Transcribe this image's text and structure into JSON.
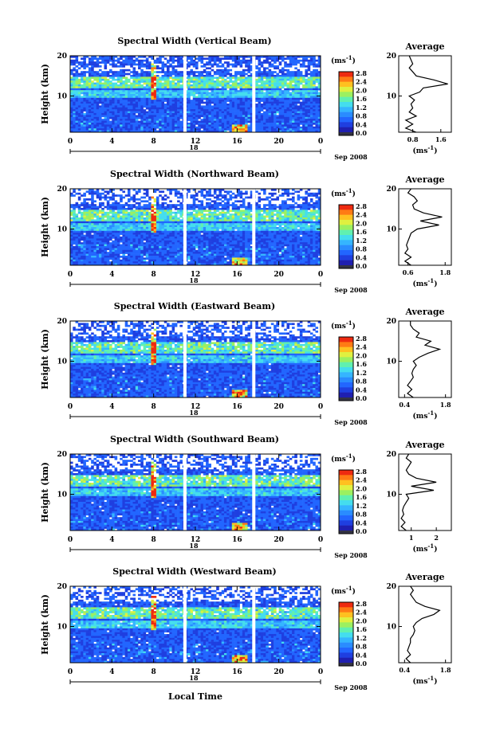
{
  "figure": {
    "xlabel": "Local Time",
    "date_label": "Sep 2008",
    "day_label": "18",
    "ylabel": "Height (km)",
    "unit_label": "(ms",
    "unit_exp": "-1",
    "avg_title": "Average",
    "colormap": [
      "#1f1fb0",
      "#1f3fe0",
      "#2266ff",
      "#2a8cff",
      "#35b5ff",
      "#44ddee",
      "#60f0b0",
      "#9cf060",
      "#e0f040",
      "#ffc020",
      "#ff7a14",
      "#ee2a10"
    ]
  },
  "chart_data": [
    {
      "type": "heatmap",
      "title": "Spectral Width (Vertical Beam)",
      "xlabel": "Local Time",
      "ylabel": "Height (km)",
      "xlim": [
        0,
        24
      ],
      "ylim": [
        1,
        20
      ],
      "xticks": [
        "0",
        "4",
        "8",
        "12",
        "16",
        "20",
        "0"
      ],
      "yticks": [
        "10",
        "20"
      ],
      "colorbar_ticks": [
        "2.8",
        "2.4",
        "2.0",
        "1.6",
        "1.2",
        "0.8",
        "0.4",
        "0.0"
      ],
      "data_gaps_hours": [
        11.0,
        17.6
      ],
      "average_profile": {
        "title": "Average",
        "xlabel": "(ms-1)",
        "xticks": [
          "0.8",
          "1.6"
        ],
        "xlim": [
          0.4,
          1.9
        ],
        "yticks": [
          "10",
          "20"
        ],
        "ylim": [
          1,
          20
        ],
        "height": [
          1,
          2,
          3,
          4,
          5,
          6,
          7,
          8,
          9,
          10,
          11,
          12,
          13,
          14,
          15,
          16,
          17,
          18,
          19,
          20
        ],
        "width": [
          0.9,
          0.6,
          0.8,
          0.6,
          0.9,
          0.7,
          0.8,
          0.75,
          0.85,
          0.7,
          1.0,
          1.1,
          1.8,
          1.4,
          0.9,
          0.8,
          0.7,
          0.8,
          0.75,
          0.7
        ]
      }
    },
    {
      "type": "heatmap",
      "title": "Spectral Width (Northward Beam)",
      "xlabel": "Local Time",
      "ylabel": "Height (km)",
      "xlim": [
        0,
        24
      ],
      "ylim": [
        1,
        20
      ],
      "xticks": [
        "0",
        "4",
        "8",
        "12",
        "16",
        "20",
        "0"
      ],
      "yticks": [
        "10",
        "20"
      ],
      "colorbar_ticks": [
        "2.8",
        "2.4",
        "2.0",
        "1.6",
        "1.2",
        "0.8",
        "0.4",
        "0.0"
      ],
      "data_gaps_hours": [
        11.0,
        17.6
      ],
      "average_profile": {
        "title": "Average",
        "xlabel": "(ms-1)",
        "xticks": [
          "0.6",
          "1.8"
        ],
        "xlim": [
          0.3,
          2.0
        ],
        "yticks": [
          "10",
          "20"
        ],
        "ylim": [
          1,
          20
        ],
        "height": [
          1,
          2,
          3,
          4,
          5,
          6,
          7,
          8,
          9,
          10,
          11,
          12,
          13,
          14,
          15,
          16,
          17,
          18,
          19,
          20
        ],
        "width": [
          0.7,
          0.5,
          0.7,
          0.5,
          0.6,
          0.55,
          0.6,
          0.65,
          0.7,
          0.9,
          1.6,
          1.0,
          1.7,
          1.1,
          0.8,
          0.75,
          0.9,
          0.8,
          0.6,
          0.7
        ]
      }
    },
    {
      "type": "heatmap",
      "title": "Spectral Width (Eastward Beam)",
      "xlabel": "Local Time",
      "ylabel": "Height (km)",
      "xlim": [
        0,
        24
      ],
      "ylim": [
        1,
        20
      ],
      "xticks": [
        "0",
        "4",
        "8",
        "12",
        "16",
        "20",
        "0"
      ],
      "yticks": [
        "10",
        "20"
      ],
      "colorbar_ticks": [
        "2.8",
        "2.4",
        "2.0",
        "1.6",
        "1.2",
        "0.8",
        "0.4",
        "0.0"
      ],
      "data_gaps_hours": [
        11.0,
        17.6
      ],
      "average_profile": {
        "title": "Average",
        "xlabel": "(ms-1)",
        "xticks": [
          "0.4",
          "1.8"
        ],
        "xlim": [
          0.2,
          2.0
        ],
        "yticks": [
          "10",
          "20"
        ],
        "ylim": [
          1,
          20
        ],
        "height": [
          1,
          2,
          3,
          4,
          5,
          6,
          7,
          8,
          9,
          10,
          11,
          12,
          13,
          14,
          15,
          16,
          17,
          18,
          19,
          20
        ],
        "width": [
          0.7,
          0.5,
          0.65,
          0.5,
          0.6,
          0.7,
          0.65,
          0.7,
          0.8,
          0.7,
          0.9,
          1.2,
          1.6,
          1.1,
          1.3,
          0.8,
          0.9,
          0.7,
          0.6,
          0.6
        ]
      }
    },
    {
      "type": "heatmap",
      "title": "Spectral Width (Southward Beam)",
      "xlabel": "Local Time",
      "ylabel": "Height (km)",
      "xlim": [
        0,
        24
      ],
      "ylim": [
        1,
        20
      ],
      "xticks": [
        "0",
        "4",
        "8",
        "12",
        "16",
        "20",
        "0"
      ],
      "yticks": [
        "10",
        "20"
      ],
      "colorbar_ticks": [
        "2.8",
        "2.4",
        "2.0",
        "1.6",
        "1.2",
        "0.8",
        "0.4",
        "0.0"
      ],
      "data_gaps_hours": [
        11.0,
        17.6
      ],
      "average_profile": {
        "title": "Average",
        "xlabel": "(ms-1)",
        "xticks": [
          "1",
          "2"
        ],
        "xlim": [
          0.5,
          2.6
        ],
        "yticks": [
          "10",
          "20"
        ],
        "ylim": [
          1,
          20
        ],
        "height": [
          1,
          2,
          3,
          4,
          5,
          6,
          7,
          8,
          9,
          10,
          11,
          12,
          13,
          14,
          15,
          16,
          17,
          18,
          19,
          20
        ],
        "width": [
          0.8,
          0.6,
          0.75,
          0.6,
          0.7,
          0.65,
          0.7,
          0.8,
          0.9,
          0.8,
          1.9,
          1.0,
          2.0,
          1.2,
          0.9,
          0.8,
          0.9,
          1.0,
          0.8,
          0.9
        ]
      }
    },
    {
      "type": "heatmap",
      "title": "Spectral Width (Westward Beam)",
      "xlabel": "Local Time",
      "ylabel": "Height (km)",
      "xlim": [
        0,
        24
      ],
      "ylim": [
        1,
        20
      ],
      "xticks": [
        "0",
        "4",
        "8",
        "12",
        "16",
        "20",
        "0"
      ],
      "yticks": [
        "10",
        "20"
      ],
      "colorbar_ticks": [
        "2.8",
        "2.4",
        "2.0",
        "1.6",
        "1.2",
        "0.8",
        "0.4",
        "0.0"
      ],
      "data_gaps_hours": [
        11.0,
        17.6
      ],
      "average_profile": {
        "title": "Average",
        "xlabel": "(ms-1)",
        "xticks": [
          "0.4",
          "1.8"
        ],
        "xlim": [
          0.2,
          2.0
        ],
        "yticks": [
          "10",
          "20"
        ],
        "ylim": [
          1,
          20
        ],
        "height": [
          1,
          2,
          3,
          4,
          5,
          6,
          7,
          8,
          9,
          10,
          11,
          12,
          13,
          14,
          15,
          16,
          17,
          18,
          19,
          20
        ],
        "width": [
          0.6,
          0.45,
          0.6,
          0.5,
          0.55,
          0.6,
          0.6,
          0.7,
          0.75,
          0.7,
          0.8,
          1.0,
          1.4,
          1.6,
          1.1,
          0.8,
          0.7,
          0.6,
          0.7,
          0.6
        ]
      }
    }
  ]
}
